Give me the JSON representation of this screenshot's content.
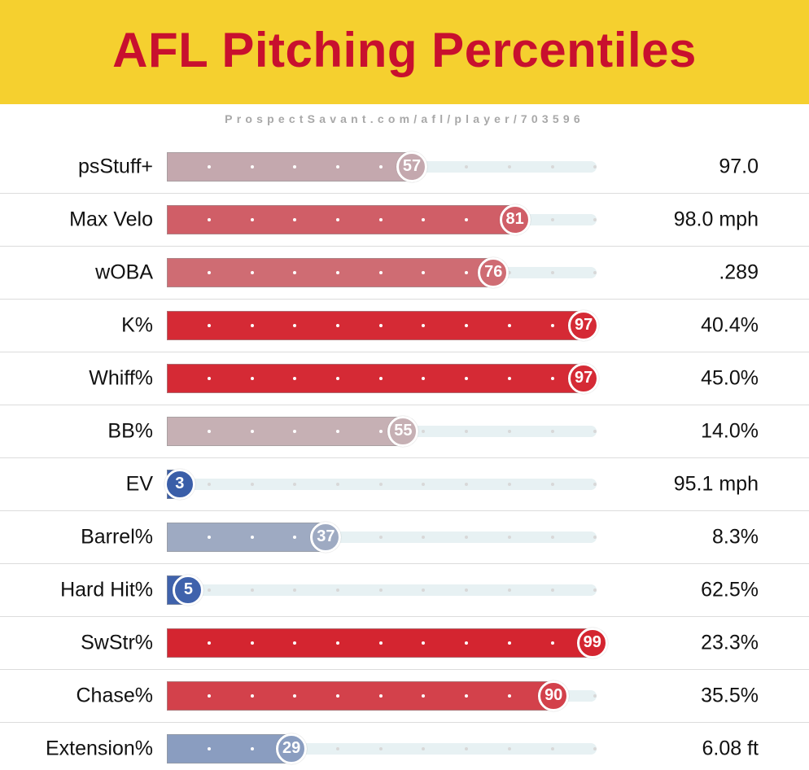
{
  "title": "AFL Pitching Percentiles",
  "source": "ProspectSavant.com/afl/player/703596",
  "chart_data": {
    "type": "bar",
    "orientation": "horizontal",
    "scale": [
      0,
      100
    ],
    "rows": [
      {
        "label": "psStuff+",
        "percentile": 57,
        "value": "97.0",
        "color": "#c4a8ae"
      },
      {
        "label": "Max Velo",
        "percentile": 81,
        "value": "98.0 mph",
        "color": "#d05e67"
      },
      {
        "label": "wOBA",
        "percentile": 76,
        "value": ".289",
        "color": "#cf6c73"
      },
      {
        "label": "K%",
        "percentile": 97,
        "value": "40.4%",
        "color": "#d52a35"
      },
      {
        "label": "Whiff%",
        "percentile": 97,
        "value": "45.0%",
        "color": "#d52a35"
      },
      {
        "label": "BB%",
        "percentile": 55,
        "value": "14.0%",
        "color": "#c6b0b4"
      },
      {
        "label": "EV",
        "percentile": 3,
        "value": "95.1 mph",
        "color": "#3a5ea8"
      },
      {
        "label": "Barrel%",
        "percentile": 37,
        "value": "8.3%",
        "color": "#9eaac2"
      },
      {
        "label": "Hard Hit%",
        "percentile": 5,
        "value": "62.5%",
        "color": "#3f62ac"
      },
      {
        "label": "SwStr%",
        "percentile": 99,
        "value": "23.3%",
        "color": "#d42530"
      },
      {
        "label": "Chase%",
        "percentile": 90,
        "value": "35.5%",
        "color": "#d3414b"
      },
      {
        "label": "Extension%",
        "percentile": 29,
        "value": "6.08 ft",
        "color": "#8a9dc0"
      }
    ]
  }
}
